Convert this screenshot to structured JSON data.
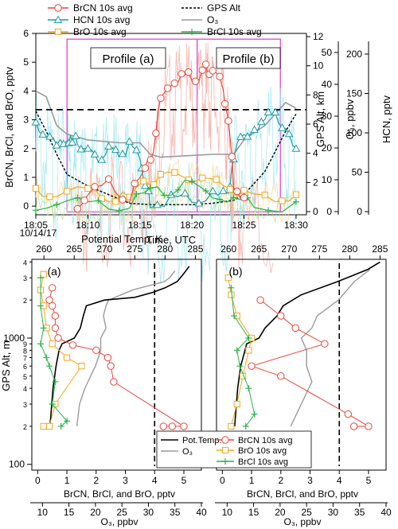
{
  "colors": {
    "brcn": "#e8463c",
    "brcn_light": "#f5a8a0",
    "hcn": "#1f9aa3",
    "hcn_light": "#9fe6ef",
    "bro": "#f0a81c",
    "bro_light": "#f8d890",
    "brcl": "#2ab24a",
    "brcl_light": "#a6e4a0",
    "o3": "#9a9a9a",
    "pot": "#000000",
    "alt": "#000000",
    "profile_box": "#e060d8",
    "dashed": "#000000"
  },
  "chart_data": [
    {
      "id": "top",
      "type": "line",
      "xlabel": "Time, UTC",
      "x_ticks": [
        "18:05",
        "18:10",
        "18:15",
        "18:20",
        "18:25",
        "18:30"
      ],
      "x_date_label": "10/14/17",
      "x_range": [
        18.05,
        18.31
      ],
      "ylabel_left": "BrCN, BrCl, and BrO, pptv",
      "ylim_left": [
        -0.3,
        6.0
      ],
      "y_ticks_left": [
        "0",
        "1",
        "2",
        "3",
        "4",
        "5",
        "6"
      ],
      "ylabel_alt": "GPS Alt, km",
      "ylim_alt": [
        0,
        12
      ],
      "y_ticks_alt": [
        "0",
        "2",
        "4",
        "6",
        "8",
        "10",
        "12"
      ],
      "ylabel_o3": "O₃, ppbv",
      "y_ticks_o3": [
        "0",
        "10",
        "20",
        "30",
        "40",
        "50"
      ],
      "ylabel_hcn": "HCN, pptv",
      "y_ticks_hcn": [
        "0",
        "50",
        "100",
        "150",
        "200"
      ],
      "profile_a_label": "Profile (a)",
      "profile_b_label": "Profile (b)",
      "profile_a_range": [
        "18:08",
        "18:20.5"
      ],
      "profile_b_range": [
        "18:20.5",
        "18:29"
      ],
      "dashed_level": 3.35,
      "legend": [
        {
          "name": "BrCN 10s avg",
          "color": "brcn",
          "marker": "circle"
        },
        {
          "name": "GPS Alt",
          "color": "alt",
          "marker": "dash"
        },
        {
          "name": "HCN 10s avg",
          "color": "hcn",
          "marker": "triangle"
        },
        {
          "name": "O₃",
          "color": "o3",
          "marker": "line"
        },
        {
          "name": "BrO 10s avg",
          "color": "bro",
          "marker": "square"
        },
        {
          "name": "BrCl 10s avg",
          "color": "brcl",
          "marker": "plus"
        }
      ],
      "series": {
        "brcn": [
          [
            18.09,
            0.2
          ],
          [
            18.1,
            0.4
          ],
          [
            18.12,
            0.9
          ],
          [
            18.14,
            0.4
          ],
          [
            18.155,
            1.2
          ],
          [
            18.163,
            2.2
          ],
          [
            18.17,
            3.8
          ],
          [
            18.18,
            4.5
          ],
          [
            18.19,
            4.7
          ],
          [
            18.2,
            4.6
          ],
          [
            18.21,
            4.8
          ],
          [
            18.215,
            4.9
          ],
          [
            18.22,
            4.7
          ],
          [
            18.23,
            4.3
          ],
          [
            18.235,
            3.0
          ],
          [
            18.24,
            1.0
          ],
          [
            18.25,
            0.3
          ],
          [
            18.28,
            0.2
          ]
        ],
        "hcn_left": [
          [
            18.05,
            3.0
          ],
          [
            18.06,
            2.6
          ],
          [
            18.07,
            2.1
          ],
          [
            18.08,
            2.6
          ],
          [
            18.085,
            2.2
          ],
          [
            18.09,
            2.4
          ],
          [
            18.1,
            2.1
          ],
          [
            18.11,
            1.8
          ],
          [
            18.12,
            2.2
          ],
          [
            18.13,
            2.0
          ],
          [
            18.14,
            2.2
          ],
          [
            18.15,
            2.0
          ],
          [
            18.155,
            0.8
          ],
          [
            18.16,
            0.3
          ],
          [
            18.18,
            0.3
          ],
          [
            18.2,
            0.5
          ],
          [
            18.22,
            0.4
          ],
          [
            18.235,
            0.5
          ],
          [
            18.24,
            2.0
          ],
          [
            18.25,
            2.5
          ],
          [
            18.26,
            2.8
          ],
          [
            18.27,
            3.0
          ],
          [
            18.28,
            3.5
          ],
          [
            18.29,
            2.7
          ],
          [
            18.3,
            2.0
          ]
        ],
        "bro": [
          [
            18.05,
            0.7
          ],
          [
            18.07,
            0.5
          ],
          [
            18.1,
            0.6
          ],
          [
            18.12,
            0.5
          ],
          [
            18.14,
            0.3
          ],
          [
            18.16,
            1.0
          ],
          [
            18.17,
            1.2
          ],
          [
            18.19,
            1.3
          ],
          [
            18.21,
            1.1
          ],
          [
            18.23,
            1.0
          ],
          [
            18.25,
            0.5
          ],
          [
            18.28,
            0.5
          ],
          [
            18.3,
            0.4
          ]
        ],
        "brcl": [
          [
            18.05,
            0.15
          ],
          [
            18.08,
            0.2
          ],
          [
            18.11,
            0.15
          ],
          [
            18.14,
            0.2
          ],
          [
            18.16,
            0.5
          ],
          [
            18.18,
            0.7
          ],
          [
            18.2,
            0.9
          ],
          [
            18.22,
            0.6
          ],
          [
            18.24,
            0.4
          ],
          [
            18.26,
            0.2
          ],
          [
            18.3,
            0.15
          ]
        ],
        "o3_left": [
          [
            18.05,
            4.0
          ],
          [
            18.06,
            3.8
          ],
          [
            18.07,
            2.8
          ],
          [
            18.08,
            2.5
          ],
          [
            18.1,
            2.3
          ],
          [
            18.13,
            2.2
          ],
          [
            18.15,
            2.2
          ],
          [
            18.16,
            1.8
          ],
          [
            18.17,
            1.7
          ],
          [
            18.22,
            1.8
          ],
          [
            18.24,
            1.8
          ],
          [
            18.25,
            2.3
          ],
          [
            18.27,
            2.8
          ],
          [
            18.28,
            3.2
          ],
          [
            18.29,
            3.6
          ],
          [
            18.3,
            3.4
          ]
        ],
        "alt_left": [
          [
            18.05,
            3.3
          ],
          [
            18.06,
            2.6
          ],
          [
            18.07,
            1.8
          ],
          [
            18.08,
            1.1
          ],
          [
            18.1,
            0.7
          ],
          [
            18.12,
            0.4
          ],
          [
            18.14,
            0.1
          ],
          [
            18.16,
            0.05
          ],
          [
            18.18,
            0.05
          ],
          [
            18.2,
            0.05
          ],
          [
            18.22,
            0.1
          ],
          [
            18.24,
            0.2
          ],
          [
            18.25,
            0.4
          ],
          [
            18.27,
            1.2
          ],
          [
            18.28,
            1.9
          ],
          [
            18.29,
            2.6
          ],
          [
            18.3,
            3.2
          ]
        ]
      }
    },
    {
      "id": "a",
      "panel_label": "(a)",
      "type": "line",
      "x_top_label": "Potential Temp, K",
      "x_top_ticks": [
        "260",
        "265",
        "270",
        "275",
        "280",
        "285"
      ],
      "x_top_range": [
        258,
        286
      ],
      "x_bottom_label": "BrCN, BrCl, and BrO, pptv",
      "x_bottom_ticks": [
        "0",
        "1",
        "2",
        "3",
        "4",
        "5"
      ],
      "x_bottom_range": [
        -0.2,
        5.6
      ],
      "x_o3_label": "O₃, ppbv",
      "x_o3_ticks": [
        "10",
        "15",
        "20",
        "25",
        "30",
        "35",
        "40"
      ],
      "x_o3_range": [
        8,
        40
      ],
      "ylabel": "GPS Alt, m",
      "y_log_ticks": [
        "100",
        "2",
        "3",
        "4",
        "5",
        "6",
        "7",
        "8",
        "9",
        "1000",
        "2",
        "3",
        "4"
      ],
      "ylim": [
        90,
        4200
      ],
      "dashed_x": 4.0,
      "series": {
        "pot": [
          [
            261,
            200
          ],
          [
            261.5,
            400
          ],
          [
            262,
            600
          ],
          [
            262.5,
            800
          ],
          [
            263,
            900
          ],
          [
            265,
            1000
          ],
          [
            266,
            1200
          ],
          [
            266.5,
            1500
          ],
          [
            267,
            1800
          ],
          [
            270,
            2000
          ],
          [
            275,
            2100
          ],
          [
            278,
            2300
          ],
          [
            280,
            2500
          ],
          [
            282,
            2800
          ],
          [
            283,
            3200
          ],
          [
            284,
            3700
          ]
        ],
        "o3": [
          [
            16.5,
            200
          ],
          [
            17,
            300
          ],
          [
            18,
            400
          ],
          [
            20,
            600
          ],
          [
            21,
            800
          ],
          [
            21,
            1000
          ],
          [
            22,
            1200
          ],
          [
            21.5,
            1500
          ],
          [
            22,
            1800
          ],
          [
            22.5,
            2000
          ],
          [
            27,
            2400
          ],
          [
            33,
            2800
          ],
          [
            34,
            3000
          ],
          [
            35,
            3400
          ]
        ],
        "brcn": [
          [
            4.3,
            200
          ],
          [
            4.6,
            200
          ],
          [
            5.0,
            200
          ],
          [
            2.6,
            450
          ],
          [
            2.5,
            600
          ],
          [
            2.4,
            700
          ],
          [
            2.0,
            800
          ],
          [
            1.2,
            880
          ],
          [
            0.7,
            1000
          ],
          [
            0.6,
            1200
          ],
          [
            0.6,
            1500
          ],
          [
            0.5,
            1800
          ],
          [
            0.4,
            2000
          ],
          [
            0.5,
            2500
          ]
        ],
        "bro": [
          [
            0.2,
            200
          ],
          [
            0.4,
            200
          ],
          [
            0.6,
            300
          ],
          [
            1.5,
            600
          ],
          [
            1.0,
            700
          ],
          [
            0.5,
            900
          ],
          [
            0.3,
            1200
          ],
          [
            0.2,
            1800
          ],
          [
            0.1,
            2400
          ],
          [
            0.2,
            3200
          ]
        ],
        "brcl": [
          [
            0.8,
            200
          ],
          [
            1.0,
            220
          ],
          [
            0.5,
            300
          ],
          [
            0.6,
            450
          ],
          [
            0.4,
            600
          ],
          [
            0.3,
            700
          ],
          [
            0.1,
            900
          ],
          [
            0.2,
            1200
          ],
          [
            0.1,
            1800
          ],
          [
            0.1,
            3000
          ]
        ]
      }
    },
    {
      "id": "b",
      "panel_label": "(b)",
      "type": "line",
      "x_top_label": "",
      "x_top_ticks": [
        "260",
        "265",
        "270",
        "275",
        "280",
        "285"
      ],
      "x_top_range": [
        258,
        286
      ],
      "x_bottom_label": "BrCN, BrCl, and BrO, pptv",
      "x_bottom_ticks": [
        "0",
        "1",
        "2",
        "3",
        "4",
        "5"
      ],
      "x_bottom_range": [
        -0.2,
        5.6
      ],
      "x_o3_label": "O₃, ppbv",
      "x_o3_ticks": [
        "10",
        "15",
        "20",
        "25",
        "30",
        "35",
        "40"
      ],
      "x_o3_range": [
        8,
        40
      ],
      "dashed_x": 4.0,
      "series": {
        "pot": [
          [
            261,
            200
          ],
          [
            261.5,
            400
          ],
          [
            262,
            600
          ],
          [
            263,
            900
          ],
          [
            265,
            1000
          ],
          [
            266,
            1200
          ],
          [
            268,
            1500
          ],
          [
            269,
            1800
          ],
          [
            272,
            2200
          ],
          [
            278,
            2800
          ],
          [
            283,
            3500
          ],
          [
            285,
            4000
          ]
        ],
        "o3": [
          [
            22,
            200
          ],
          [
            24,
            300
          ],
          [
            26,
            450
          ],
          [
            25,
            600
          ],
          [
            25,
            800
          ],
          [
            24,
            1000
          ],
          [
            26,
            1200
          ],
          [
            27,
            1500
          ],
          [
            31,
            2000
          ],
          [
            34,
            2800
          ],
          [
            37,
            3500
          ]
        ],
        "brcn": [
          [
            4.5,
            200
          ],
          [
            5.0,
            200
          ],
          [
            4.3,
            250
          ],
          [
            2.0,
            500
          ],
          [
            1.0,
            600
          ],
          [
            3.5,
            900
          ],
          [
            2.5,
            1200
          ],
          [
            2.0,
            1500
          ],
          [
            1.3,
            2000
          ]
        ],
        "bro": [
          [
            0.3,
            200
          ],
          [
            0.5,
            300
          ],
          [
            0.7,
            500
          ],
          [
            0.9,
            800
          ],
          [
            1.0,
            1000
          ],
          [
            0.5,
            1500
          ],
          [
            0.3,
            2200
          ],
          [
            0.2,
            3000
          ]
        ],
        "brcl": [
          [
            0.8,
            200
          ],
          [
            1.1,
            250
          ],
          [
            0.9,
            400
          ],
          [
            0.6,
            600
          ],
          [
            0.5,
            800
          ],
          [
            0.9,
            1000
          ],
          [
            0.4,
            1500
          ],
          [
            0.3,
            2500
          ]
        ]
      }
    }
  ],
  "bottom_legend": [
    {
      "name": "Pot.Temp.",
      "color": "pot",
      "marker": "line"
    },
    {
      "name": "BrCN 10s avg",
      "color": "brcn",
      "marker": "circle"
    },
    {
      "name": "BrO 10s avg",
      "color": "bro",
      "marker": "square"
    },
    {
      "name": "O₃",
      "color": "o3",
      "marker": "line"
    },
    {
      "name": "BrCl 10s avg",
      "color": "brcl",
      "marker": "plus"
    }
  ]
}
